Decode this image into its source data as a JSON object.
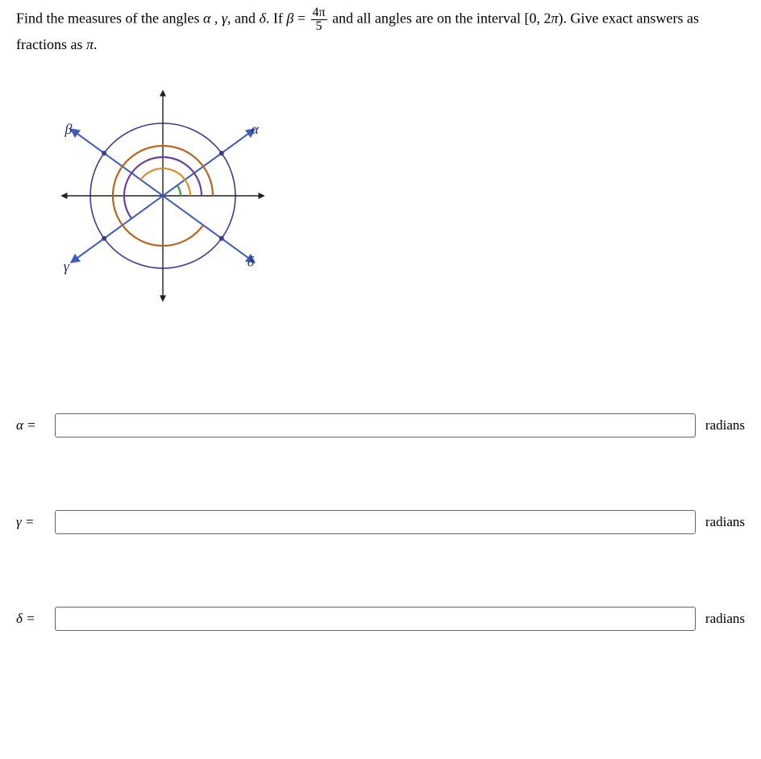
{
  "question": {
    "part1": "Find the measures of the angles ",
    "alpha": "α",
    "sep1": " , ",
    "gamma": "γ",
    "sep2": ",  and ",
    "delta": "δ",
    "sep3": ". If ",
    "beta": "β",
    "eq": " = ",
    "frac_num": "4π",
    "frac_den": "5",
    "part2": " and all angles are on the interval [0,  2",
    "pi": "π",
    "part3": "). Give exact answers as",
    "line2": "fractions as ",
    "pi2": "π",
    "dot": "."
  },
  "diagram": {
    "labels": {
      "alpha": "α",
      "beta": "β",
      "gamma": "γ",
      "delta": "δ"
    },
    "colors": {
      "circle_main": "#3b3b8f",
      "axes": "#222",
      "line_blue": "#3b5bbf",
      "arc_green": "#3a9d3a",
      "arc_orange": "#d98b2b",
      "arc_purple": "#6b3fa0",
      "arc_darkorange": "#b8651f",
      "label_alpha": "#2a2a6e",
      "label_beta": "#2a2a6e",
      "label_gamma": "#2a2a6e",
      "label_delta": "#2a2a6e"
    },
    "beta_angle_rad": 2.5133
  },
  "answers": {
    "rows": [
      {
        "label": "α =",
        "value": "",
        "unit": "radians"
      },
      {
        "label": "γ =",
        "value": "",
        "unit": "radians"
      },
      {
        "label": "δ =",
        "value": "",
        "unit": "radians"
      }
    ]
  }
}
